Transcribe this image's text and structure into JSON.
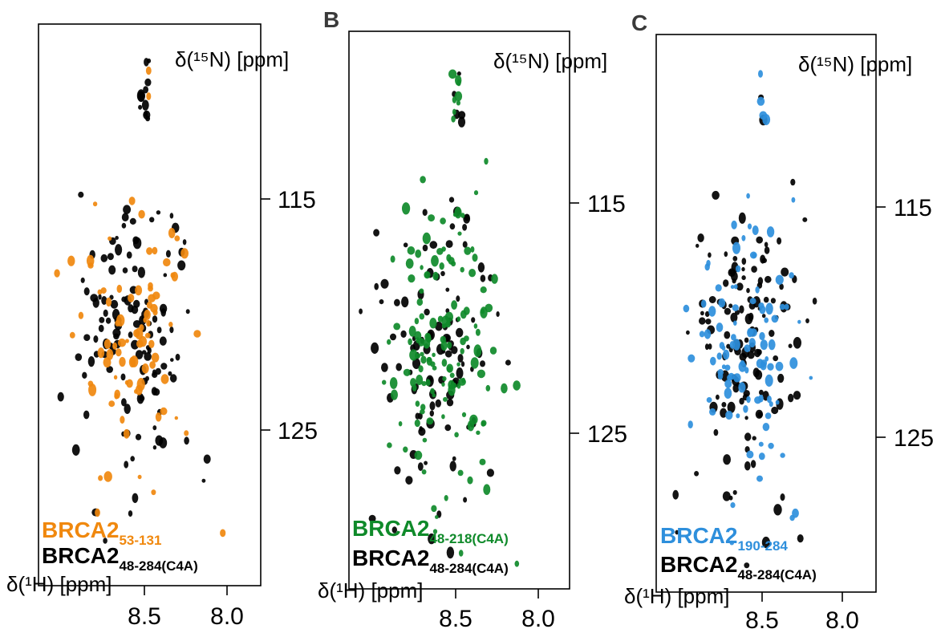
{
  "chart_data": [
    {
      "type": "scatter",
      "panel_label": "",
      "ylabel": "δ(¹⁵N) [ppm]",
      "xlabel": "δ(¹H) [ppm]",
      "x_ticks": [
        "8.5",
        "8.0"
      ],
      "y_ticks": [
        "115",
        "125"
      ],
      "xlim": [
        9.2,
        7.8
      ],
      "ylim": [
        107.5,
        130.5
      ],
      "series": [
        {
          "name": "BRCA2",
          "subscript": "53-131",
          "color": "#f0880e",
          "seed": 11,
          "count": 85
        },
        {
          "name": "BRCA2",
          "subscript": "48-284(C4A)",
          "color": "#000000",
          "seed": 7,
          "count": 135
        }
      ]
    },
    {
      "type": "scatter",
      "panel_label": "B",
      "ylabel": "δ(¹⁵N) [ppm]",
      "xlabel": "δ(¹H) [ppm]",
      "x_ticks": [
        "8.5",
        "8.0"
      ],
      "y_ticks": [
        "115",
        "125"
      ],
      "xlim": [
        9.2,
        7.8
      ],
      "ylim": [
        107.5,
        130.5
      ],
      "series": [
        {
          "name": "BRCA2",
          "subscript": "48-218(C4A)",
          "color": "#0f8a2a",
          "seed": 23,
          "count": 150
        },
        {
          "name": "BRCA2",
          "subscript": "48-284(C4A)",
          "color": "#000000",
          "seed": 7,
          "count": 110
        }
      ]
    },
    {
      "type": "scatter",
      "panel_label": "C",
      "ylabel": "δ(¹⁵N) [ppm]",
      "xlabel": "δ(¹H) [ppm]",
      "x_ticks": [
        "8.5",
        "8.0"
      ],
      "y_ticks": [
        "115",
        "125"
      ],
      "xlim": [
        9.2,
        7.8
      ],
      "ylim": [
        107.5,
        130.5
      ],
      "series": [
        {
          "name": "BRCA2",
          "subscript": "190-284",
          "color": "#2e8fdc",
          "seed": 31,
          "count": 105
        },
        {
          "name": "BRCA2",
          "subscript": "48-284(C4A)",
          "color": "#000000",
          "seed": 7,
          "count": 135
        }
      ]
    }
  ]
}
